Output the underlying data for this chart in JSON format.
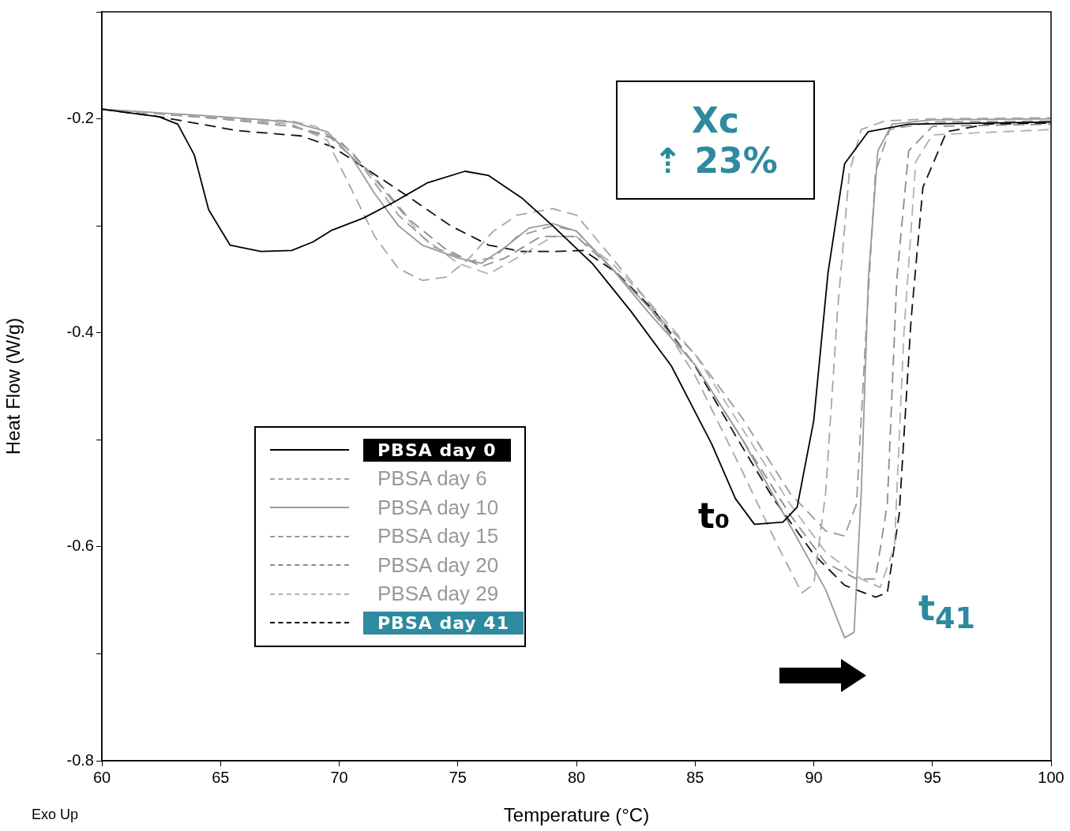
{
  "chart_data": {
    "type": "line",
    "xlabel": "Temperature (°C)",
    "ylabel": "Heat Flow (W/g)",
    "xlim": [
      60,
      100
    ],
    "xticks": [
      60,
      65,
      70,
      75,
      80,
      85,
      90,
      95,
      100
    ],
    "ylim": [
      -0.8,
      -0.1
    ],
    "yticks": [
      -0.8,
      {
        "value": -0.7,
        "label": null
      },
      -0.6,
      {
        "value": -0.5,
        "label": null
      },
      -0.4,
      {
        "value": -0.3,
        "label": null
      },
      -0.2,
      {
        "value": -0.1,
        "label": null
      }
    ],
    "grid": false,
    "legend": "bottom left",
    "marker": "none",
    "annotations": [
      "Xc",
      "⇡ 23%",
      "t₀",
      "t$_{41}$",
      "Exo Up"
    ],
    "series": [
      {
        "name": "PBSA day 0",
        "color": "#000000",
        "line_style": "solid",
        "x": [
          60,
          62.4,
          63.2,
          63.9,
          64.5,
          65.4,
          66.7,
          68,
          68.9,
          69.7,
          71,
          72.3,
          73.7,
          75.3,
          76.3,
          77.7,
          79,
          80.7,
          82.3,
          84,
          85.7,
          86.7,
          87.5,
          88.7,
          89.3,
          90,
          90.6,
          91.3,
          92.3,
          94,
          100
        ],
        "values": [
          -0.191,
          -0.198,
          -0.205,
          -0.234,
          -0.285,
          -0.318,
          -0.324,
          -0.323,
          -0.315,
          -0.304,
          -0.293,
          -0.278,
          -0.26,
          -0.249,
          -0.253,
          -0.274,
          -0.3,
          -0.336,
          -0.38,
          -0.431,
          -0.504,
          -0.555,
          -0.579,
          -0.577,
          -0.563,
          -0.482,
          -0.344,
          -0.242,
          -0.212,
          -0.205,
          -0.203
        ]
      },
      {
        "name": "PBSA day 6",
        "color": "#a6a6a6",
        "line_style": "dashed",
        "x": [
          60,
          65,
          68,
          69.5,
          70.5,
          71.5,
          72.5,
          73.5,
          74.5,
          75.5,
          76.5,
          77.5,
          79,
          80,
          81.5,
          83,
          85,
          87,
          88.5,
          89.5,
          90,
          90.5,
          91,
          91.5,
          92,
          93,
          95,
          100
        ],
        "values": [
          -0.191,
          -0.199,
          -0.205,
          -0.22,
          -0.265,
          -0.31,
          -0.34,
          -0.351,
          -0.348,
          -0.33,
          -0.305,
          -0.29,
          -0.284,
          -0.29,
          -0.33,
          -0.37,
          -0.44,
          -0.53,
          -0.6,
          -0.643,
          -0.635,
          -0.55,
          -0.38,
          -0.25,
          -0.21,
          -0.202,
          -0.2,
          -0.199
        ]
      },
      {
        "name": "PBSA day 10",
        "color": "#999999",
        "line_style": "solid",
        "x": [
          60,
          65,
          68,
          69.5,
          70.5,
          71.5,
          72.5,
          73.5,
          75,
          76,
          77,
          78,
          79,
          80,
          81.5,
          83,
          85,
          87,
          89,
          90.5,
          91.3,
          91.7,
          92,
          92.3,
          92.7,
          93.3,
          95,
          100
        ],
        "values": [
          -0.191,
          -0.198,
          -0.203,
          -0.212,
          -0.235,
          -0.27,
          -0.3,
          -0.318,
          -0.33,
          -0.335,
          -0.32,
          -0.302,
          -0.298,
          -0.305,
          -0.34,
          -0.38,
          -0.43,
          -0.5,
          -0.58,
          -0.64,
          -0.685,
          -0.68,
          -0.55,
          -0.35,
          -0.23,
          -0.205,
          -0.201,
          -0.2
        ]
      },
      {
        "name": "PBSA day 15",
        "color": "#9a9a9a",
        "line_style": "dashed",
        "x": [
          60,
          65,
          68,
          69.5,
          71,
          72.5,
          74,
          75.5,
          76.5,
          77.5,
          79,
          80,
          81.5,
          83,
          85,
          87,
          89,
          90.5,
          91.3,
          91.8,
          92.2,
          92.6,
          93.2,
          95,
          100
        ],
        "values": [
          -0.191,
          -0.2,
          -0.207,
          -0.215,
          -0.245,
          -0.29,
          -0.32,
          -0.333,
          -0.33,
          -0.31,
          -0.3,
          -0.305,
          -0.34,
          -0.375,
          -0.42,
          -0.48,
          -0.55,
          -0.585,
          -0.59,
          -0.56,
          -0.4,
          -0.25,
          -0.21,
          -0.203,
          -0.202
        ]
      },
      {
        "name": "PBSA day 20",
        "color": "#8c8c8c",
        "line_style": "dashed",
        "x": [
          60,
          65,
          68,
          70,
          71.5,
          73,
          74.5,
          76,
          77,
          78.5,
          80,
          81.5,
          83,
          85,
          87,
          89,
          90.5,
          91.8,
          92.6,
          93.1,
          93.5,
          94,
          95,
          100
        ],
        "values": [
          -0.191,
          -0.2,
          -0.207,
          -0.22,
          -0.255,
          -0.295,
          -0.322,
          -0.338,
          -0.33,
          -0.31,
          -0.31,
          -0.34,
          -0.375,
          -0.43,
          -0.5,
          -0.57,
          -0.615,
          -0.63,
          -0.63,
          -0.56,
          -0.35,
          -0.23,
          -0.207,
          -0.205
        ]
      },
      {
        "name": "PBSA day 29",
        "color": "#b0b0b0",
        "line_style": "dashed",
        "x": [
          60,
          65,
          68,
          69,
          70.5,
          72,
          73.5,
          75,
          76.3,
          77.5,
          79,
          80,
          81.5,
          83,
          85,
          87,
          89,
          90.5,
          92,
          92.8,
          93.4,
          93.8,
          94.3,
          95,
          100
        ],
        "values": [
          -0.191,
          -0.199,
          -0.202,
          -0.207,
          -0.23,
          -0.27,
          -0.31,
          -0.335,
          -0.345,
          -0.33,
          -0.31,
          -0.31,
          -0.335,
          -0.37,
          -0.42,
          -0.49,
          -0.56,
          -0.605,
          -0.63,
          -0.638,
          -0.6,
          -0.4,
          -0.24,
          -0.215,
          -0.21
        ]
      },
      {
        "name": "PBSA day 41",
        "color": "#111111",
        "line_style": "dashed",
        "x": [
          60,
          62.4,
          65.7,
          68.4,
          69.7,
          71.3,
          73,
          74.7,
          76.3,
          77.7,
          79,
          80.3,
          81.7,
          83.3,
          85,
          86.7,
          88.3,
          90,
          91.3,
          92.6,
          93.1,
          93.6,
          94.1,
          94.6,
          95.6,
          97.3,
          100
        ],
        "values": [
          -0.191,
          -0.198,
          -0.211,
          -0.216,
          -0.226,
          -0.249,
          -0.274,
          -0.3,
          -0.318,
          -0.324,
          -0.324,
          -0.323,
          -0.344,
          -0.38,
          -0.431,
          -0.496,
          -0.555,
          -0.607,
          -0.636,
          -0.647,
          -0.643,
          -0.57,
          -0.388,
          -0.264,
          -0.212,
          -0.205,
          -0.204
        ]
      }
    ]
  }
}
